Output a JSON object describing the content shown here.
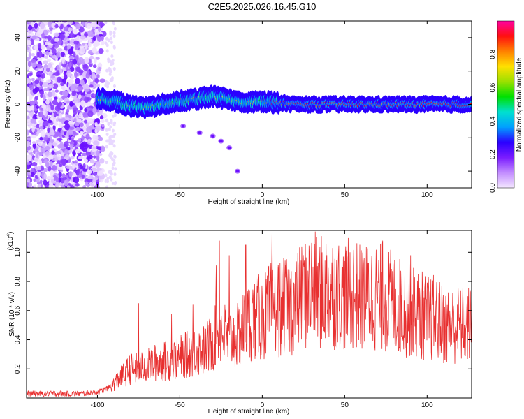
{
  "title": "C2E5.2025.026.16.45.G10",
  "colors": {
    "snr_line": "#e83030",
    "colormap": [
      "#f3e6ff",
      "#c28cff",
      "#7a1cff",
      "#2a00ff",
      "#00a0ff",
      "#00e0d0",
      "#00e000",
      "#9be000",
      "#ffe000",
      "#ff8000",
      "#ff1010",
      "#ff00a0"
    ]
  },
  "chart_data": [
    {
      "type": "heatmap",
      "title": "",
      "xlabel": "Height of straight line (km)",
      "ylabel": "Frequency (Hz)",
      "xlim": [
        -143,
        127
      ],
      "ylim": [
        -50,
        50
      ],
      "xticks": [
        -100,
        -50,
        0,
        50,
        100
      ],
      "yticks": [
        -40,
        -20,
        0,
        20,
        40
      ],
      "colorbar": {
        "label": "Normalized spectral amplitude",
        "range": [
          0,
          1
        ],
        "ticks": [
          "0.0",
          "0.2",
          "0.4",
          "0.6",
          "0.8"
        ]
      },
      "noise_region_x": [
        -143,
        -95
      ],
      "signal_track": [
        {
          "x": -100,
          "y": 4
        },
        {
          "x": -90,
          "y": 2
        },
        {
          "x": -80,
          "y": -1
        },
        {
          "x": -70,
          "y": -2
        },
        {
          "x": -60,
          "y": 0
        },
        {
          "x": -50,
          "y": 2
        },
        {
          "x": -40,
          "y": 3
        },
        {
          "x": -30,
          "y": 5
        },
        {
          "x": -20,
          "y": 3
        },
        {
          "x": -10,
          "y": 1
        },
        {
          "x": 0,
          "y": 2
        },
        {
          "x": 10,
          "y": 1
        },
        {
          "x": 20,
          "y": 0
        },
        {
          "x": 40,
          "y": 0
        },
        {
          "x": 60,
          "y": 0
        },
        {
          "x": 80,
          "y": 0
        },
        {
          "x": 100,
          "y": 0
        },
        {
          "x": 127,
          "y": 0
        }
      ],
      "secondary_trace": [
        {
          "x": -48,
          "y": -13
        },
        {
          "x": -38,
          "y": -17
        },
        {
          "x": -30,
          "y": -19
        },
        {
          "x": -25,
          "y": -22
        },
        {
          "x": -20,
          "y": -26
        },
        {
          "x": -15,
          "y": -40
        }
      ]
    },
    {
      "type": "line",
      "title": "",
      "xlabel": "Height of straight line (km)",
      "ylabel": "SNR (10 * v/v)",
      "y_multiplier": "(x10",
      "y_multiplier_exp": "4",
      "y_multiplier_close": ")",
      "xlim": [
        -143,
        127
      ],
      "ylim": [
        0,
        1.15
      ],
      "xticks": [
        -100,
        -50,
        0,
        50,
        100
      ],
      "yticks": [
        0.2,
        0.4,
        0.6,
        0.8,
        1.0
      ],
      "series": [
        {
          "x": [
            -143,
            -130,
            -110,
            -100,
            -95,
            -90,
            -85,
            -80,
            -75,
            -70,
            -65,
            -60,
            -55,
            -50,
            -45,
            -40,
            -35,
            -30,
            -27,
            -25,
            -20,
            -15,
            -10,
            -5,
            0,
            5,
            7,
            10,
            15,
            20,
            25,
            30,
            35,
            40,
            45,
            50,
            55,
            60,
            65,
            70,
            75,
            80,
            85,
            90,
            95,
            100,
            105,
            110,
            115,
            120,
            127
          ],
          "y": [
            0.03,
            0.03,
            0.03,
            0.04,
            0.06,
            0.1,
            0.15,
            0.2,
            0.2,
            0.22,
            0.24,
            0.25,
            0.26,
            0.28,
            0.3,
            0.32,
            0.33,
            0.38,
            0.5,
            0.45,
            0.4,
            0.42,
            0.5,
            0.55,
            0.55,
            0.6,
            0.65,
            0.62,
            0.62,
            0.65,
            0.7,
            0.75,
            0.72,
            0.75,
            0.72,
            0.7,
            0.72,
            0.68,
            0.7,
            0.7,
            0.68,
            0.65,
            0.62,
            0.6,
            0.58,
            0.55,
            0.55,
            0.5,
            0.5,
            0.5,
            0.5
          ],
          "peaks": [
            {
              "x": -75,
              "y": 0.65
            },
            {
              "x": -55,
              "y": 0.58
            },
            {
              "x": -42,
              "y": 0.64
            },
            {
              "x": -28,
              "y": 0.91
            },
            {
              "x": -26,
              "y": 1.08
            },
            {
              "x": -20,
              "y": 0.98
            },
            {
              "x": -10,
              "y": 1.05
            },
            {
              "x": 6,
              "y": 1.13
            },
            {
              "x": 37,
              "y": 1.0
            },
            {
              "x": 73,
              "y": 1.08
            },
            {
              "x": 90,
              "y": 0.98
            }
          ]
        }
      ]
    }
  ]
}
